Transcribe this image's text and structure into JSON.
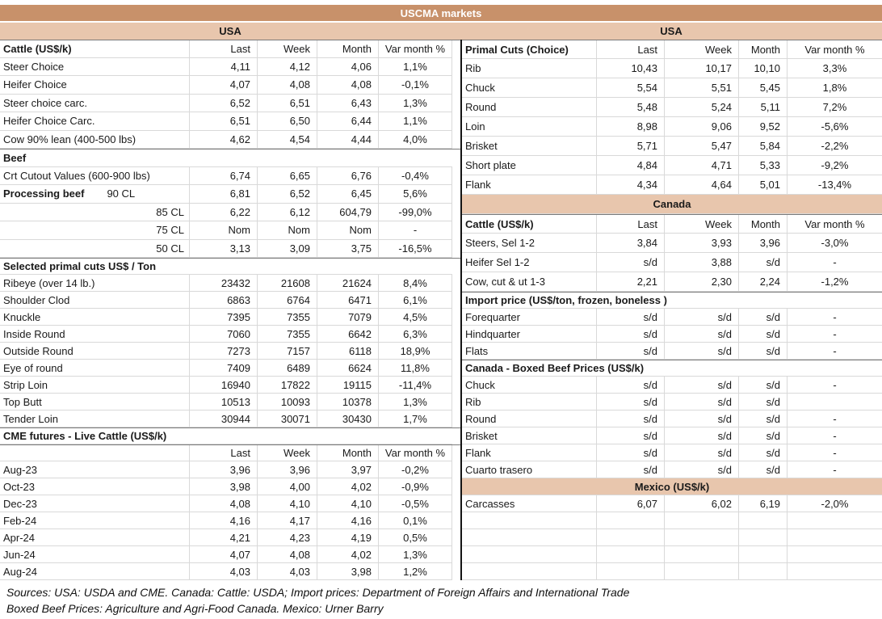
{
  "title": "USCMA markets",
  "region_bands": {
    "left": "USA",
    "right": "USA"
  },
  "colors": {
    "title_band": "#c8916a",
    "region_band": "#e8c6ad",
    "divider": "#141414",
    "grid_line": "#d9d9d9",
    "title_text": "#ffffff"
  },
  "left_table": {
    "rows": [
      {
        "t": "colheader",
        "label": "Cattle (US$/k)",
        "last": "Last",
        "week": "Week",
        "month": "Month",
        "varm": "Var month %"
      },
      {
        "t": "data",
        "label": "Steer Choice",
        "last": "4,11",
        "week": "4,12",
        "month": "4,06",
        "varm": "1,1%"
      },
      {
        "t": "data",
        "label": "Heifer Choice",
        "last": "4,07",
        "week": "4,08",
        "month": "4,08",
        "varm": "-0,1%"
      },
      {
        "t": "data",
        "label": "Steer choice carc.",
        "last": "6,52",
        "week": "6,51",
        "month": "6,43",
        "varm": "1,3%"
      },
      {
        "t": "data",
        "label": "Heifer Choice Carc.",
        "last": "6,51",
        "week": "6,50",
        "month": "6,44",
        "varm": "1,1%"
      },
      {
        "t": "data",
        "label": "Cow 90% lean (400-500 lbs)",
        "last": "4,62",
        "week": "4,54",
        "month": "4,44",
        "varm": "4,0%"
      },
      {
        "t": "section",
        "label": "Beef"
      },
      {
        "t": "data",
        "label": "Crt Cutout Values (600-900 lbs)",
        "last": "6,74",
        "week": "6,65",
        "month": "6,76",
        "varm": "-0,4%"
      },
      {
        "t": "data",
        "label": "Processing beef",
        "bold": true,
        "sub": "90 CL",
        "last": "6,81",
        "week": "6,52",
        "month": "6,45",
        "varm": "5,6%"
      },
      {
        "t": "data",
        "sub": "85 CL",
        "last": "6,22",
        "week": "6,12",
        "month": "604,79",
        "varm": "-99,0%"
      },
      {
        "t": "data",
        "sub": "75 CL",
        "last": "Nom",
        "week": "Nom",
        "month": "Nom",
        "varm": "-"
      },
      {
        "t": "data",
        "sub": "50 CL",
        "last": "3,13",
        "week": "3,09",
        "month": "3,75",
        "varm": "-16,5%"
      },
      {
        "t": "section",
        "label": "Selected primal cuts US$ / Ton"
      },
      {
        "t": "data",
        "label": "Ribeye (over 14 lb.)",
        "last": "23432",
        "week": "21608",
        "month": "21624",
        "varm": "8,4%"
      },
      {
        "t": "data",
        "label": "Shoulder Clod",
        "last": "6863",
        "week": "6764",
        "month": "6471",
        "varm": "6,1%"
      },
      {
        "t": "data",
        "label": "Knuckle",
        "last": "7395",
        "week": "7355",
        "month": "7079",
        "varm": "4,5%"
      },
      {
        "t": "data",
        "label": "Inside Round",
        "last": "7060",
        "week": "7355",
        "month": "6642",
        "varm": "6,3%"
      },
      {
        "t": "data",
        "label": "Outside Round",
        "last": "7273",
        "week": "7157",
        "month": "6118",
        "varm": "18,9%"
      },
      {
        "t": "data",
        "label": "Eye of round",
        "last": "7409",
        "week": "6489",
        "month": "6624",
        "varm": "11,8%"
      },
      {
        "t": "data",
        "label": "Strip Loin",
        "last": "16940",
        "week": "17822",
        "month": "19115",
        "varm": "-11,4%"
      },
      {
        "t": "data",
        "label": "Top Butt",
        "last": "10513",
        "week": "10093",
        "month": "10378",
        "varm": "1,3%"
      },
      {
        "t": "data",
        "label": "Tender Loin",
        "last": "30944",
        "week": "30071",
        "month": "30430",
        "varm": "1,7%"
      },
      {
        "t": "section",
        "label": "CME futures - Live Cattle (US$/k)"
      },
      {
        "t": "colheader",
        "label": "",
        "last": "Last",
        "week": "Week",
        "month": "Month",
        "varm": "Var month %"
      },
      {
        "t": "data",
        "label": "Aug-23",
        "last": "3,96",
        "week": "3,96",
        "month": "3,97",
        "varm": "-0,2%"
      },
      {
        "t": "data",
        "label": "Oct-23",
        "last": "3,98",
        "week": "4,00",
        "month": "4,02",
        "varm": "-0,9%"
      },
      {
        "t": "data",
        "label": "Dec-23",
        "last": "4,08",
        "week": "4,10",
        "month": "4,10",
        "varm": "-0,5%"
      },
      {
        "t": "data",
        "label": "Feb-24",
        "last": "4,16",
        "week": "4,17",
        "month": "4,16",
        "varm": "0,1%"
      },
      {
        "t": "data",
        "label": "Apr-24",
        "last": "4,21",
        "week": "4,23",
        "month": "4,19",
        "varm": "0,5%"
      },
      {
        "t": "data",
        "label": "Jun-24",
        "last": "4,07",
        "week": "4,08",
        "month": "4,02",
        "varm": "1,3%"
      },
      {
        "t": "data",
        "label": "Aug-24",
        "last": "4,03",
        "week": "4,03",
        "month": "3,98",
        "varm": "1,2%"
      }
    ]
  },
  "right_table": {
    "rows": [
      {
        "t": "colheader",
        "label": "Primal Cuts (Choice)",
        "last": "Last",
        "week": "Week",
        "month": "Month",
        "varm": "Var month %"
      },
      {
        "t": "data",
        "label": "Rib",
        "last": "10,43",
        "week": "10,17",
        "month": "10,10",
        "varm": "3,3%"
      },
      {
        "t": "data",
        "label": "Chuck",
        "last": "5,54",
        "week": "5,51",
        "month": "5,45",
        "varm": "1,8%"
      },
      {
        "t": "data",
        "label": "Round",
        "last": "5,48",
        "week": "5,24",
        "month": "5,11",
        "varm": "7,2%"
      },
      {
        "t": "data",
        "label": "Loin",
        "last": "8,98",
        "week": "9,06",
        "month": "9,52",
        "varm": "-5,6%"
      },
      {
        "t": "data",
        "label": "Brisket",
        "last": "5,71",
        "week": "5,47",
        "month": "5,84",
        "varm": "-2,2%"
      },
      {
        "t": "data",
        "label": "Short plate",
        "last": "4,84",
        "week": "4,71",
        "month": "5,33",
        "varm": "-9,2%"
      },
      {
        "t": "data",
        "label": "Flank",
        "last": "4,34",
        "week": "4,64",
        "month": "5,01",
        "varm": "-13,4%"
      },
      {
        "t": "band",
        "label": "Canada"
      },
      {
        "t": "colheader",
        "label": "Cattle (US$/k)",
        "last": "Last",
        "week": "Week",
        "month": "Month",
        "varm": "Var month %"
      },
      {
        "t": "data",
        "label": "Steers, Sel 1-2",
        "last": "3,84",
        "week": "3,93",
        "month": "3,96",
        "varm": "-3,0%"
      },
      {
        "t": "data",
        "label": "Heifer Sel 1-2",
        "last": "s/d",
        "week": "3,88",
        "month": "s/d",
        "varm": "-"
      },
      {
        "t": "data",
        "label": "Cow, cut & ut 1-3",
        "last": "2,21",
        "week": "2,30",
        "month": "2,24",
        "varm": "-1,2%"
      },
      {
        "t": "section",
        "label": "Import price (US$/ton, frozen, boneless )"
      },
      {
        "t": "data",
        "label": "Forequarter",
        "last": "s/d",
        "week": "s/d",
        "month": "s/d",
        "varm": "-"
      },
      {
        "t": "data",
        "label": "Hindquarter",
        "last": "s/d",
        "week": "s/d",
        "month": "s/d",
        "varm": "-"
      },
      {
        "t": "data",
        "label": "Flats",
        "last": "s/d",
        "week": "s/d",
        "month": "s/d",
        "varm": "-"
      },
      {
        "t": "section",
        "label": "Canada - Boxed Beef Prices (US$/k)"
      },
      {
        "t": "data",
        "label": "Chuck",
        "last": "s/d",
        "week": "s/d",
        "month": "s/d",
        "varm": "-"
      },
      {
        "t": "data",
        "label": "Rib",
        "last": "s/d",
        "week": "s/d",
        "month": "s/d",
        "varm": ""
      },
      {
        "t": "data",
        "label": "Round",
        "last": "s/d",
        "week": "s/d",
        "month": "s/d",
        "varm": "-"
      },
      {
        "t": "data",
        "label": "Brisket",
        "last": "s/d",
        "week": "s/d",
        "month": "s/d",
        "varm": "-"
      },
      {
        "t": "data",
        "label": "Flank",
        "last": "s/d",
        "week": "s/d",
        "month": "s/d",
        "varm": "-"
      },
      {
        "t": "data",
        "label": "Cuarto trasero",
        "last": "s/d",
        "week": "s/d",
        "month": "s/d",
        "varm": "-"
      },
      {
        "t": "band",
        "label": "Mexico (US$/k)"
      },
      {
        "t": "data",
        "label": "Carcasses",
        "last": "6,07",
        "week": "6,02",
        "month": "6,19",
        "varm": "-2,0%"
      },
      {
        "t": "empty"
      },
      {
        "t": "empty"
      },
      {
        "t": "empty"
      },
      {
        "t": "empty"
      }
    ]
  },
  "footer": {
    "line1": "Sources: USA: USDA and CME. Canada: Cattle: USDA; Import prices: Department of Foreign Affairs and International Trade",
    "line2": "Boxed Beef Prices: Agriculture and Agri-Food Canada. Mexico: Urner Barry"
  }
}
